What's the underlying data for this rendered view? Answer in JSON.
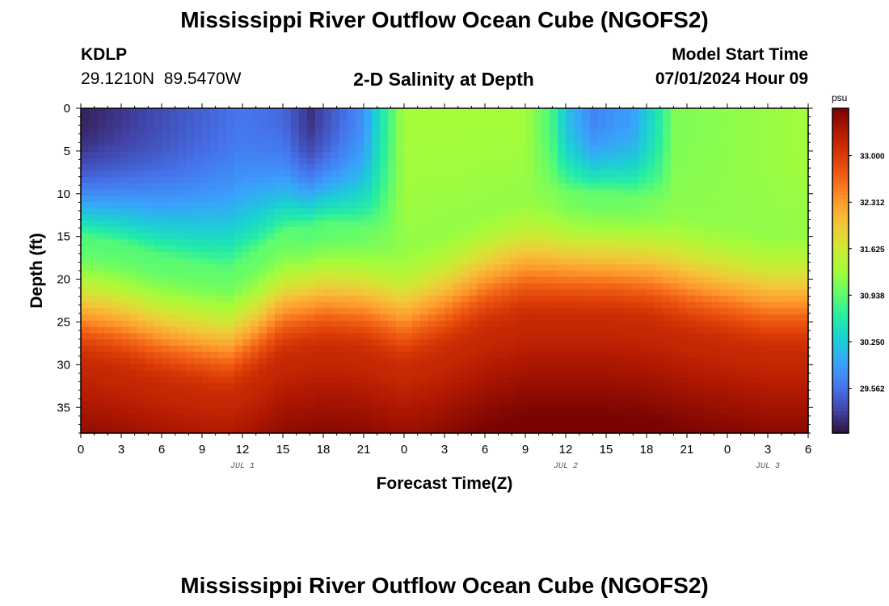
{
  "page": {
    "title": "Mississippi River Outflow Ocean Cube (NGOFS2)",
    "title_bottom": "Mississippi River Outflow Ocean Cube (NGOFS2)",
    "station_id": "KDLP",
    "station_coords": "29.1210N  89.5470W",
    "subtitle": "2-D Salinity at Depth",
    "model_start_label": "Model Start Time",
    "model_start_value": "07/01/2024 Hour 09"
  },
  "chart_data": {
    "type": "heatmap",
    "title": "2-D Salinity at Depth",
    "xlabel": "Forecast Time(Z)",
    "ylabel": "Depth (ft)",
    "x_range_hours": [
      0,
      54
    ],
    "x_tick_step_hours": 3,
    "x_tick_labels": [
      "0",
      "3",
      "6",
      "9",
      "12",
      "15",
      "18",
      "21",
      "0",
      "3",
      "6",
      "9",
      "12",
      "15",
      "18",
      "21",
      "0",
      "3",
      "6"
    ],
    "date_labels": [
      {
        "text": "JUL 1",
        "hour": 12
      },
      {
        "text": "JUL 2",
        "hour": 36
      },
      {
        "text": "JUL 3",
        "hour": 51
      }
    ],
    "y_range_ft": [
      0,
      38
    ],
    "y_ticks": [
      0,
      5,
      10,
      15,
      20,
      25,
      30,
      35
    ],
    "y_labels": [
      "0",
      "5",
      "10",
      "15",
      "20",
      "25",
      "30",
      "35"
    ],
    "colorbar": {
      "unit": "psu",
      "range": [
        28.9,
        33.7
      ],
      "tick_values": [
        33.0,
        32.312,
        31.625,
        30.938,
        30.25,
        29.562
      ],
      "tick_labels": [
        "33.000",
        "32.312",
        "31.625",
        "30.938",
        "30.250",
        "29.562"
      ],
      "colors": [
        "#30123b",
        "#4145ab",
        "#4675ed",
        "#39a2fc",
        "#1bcfd4",
        "#24eca6",
        "#61fc6c",
        "#a4fc3b",
        "#d1e834",
        "#f3c63a",
        "#fe9b2d",
        "#f36315",
        "#d93806",
        "#b11901",
        "#7a0402"
      ]
    },
    "transition_depth_ft": [
      {
        "hour": 0,
        "depth": 21
      },
      {
        "hour": 3,
        "depth": 22
      },
      {
        "hour": 6,
        "depth": 23.5
      },
      {
        "hour": 9,
        "depth": 24.5
      },
      {
        "hour": 11,
        "depth": 25
      },
      {
        "hour": 13,
        "depth": 23
      },
      {
        "hour": 15,
        "depth": 20.5
      },
      {
        "hour": 18,
        "depth": 19.5
      },
      {
        "hour": 21,
        "depth": 20
      },
      {
        "hour": 24,
        "depth": 22
      },
      {
        "hour": 27,
        "depth": 20
      },
      {
        "hour": 30,
        "depth": 17.5
      },
      {
        "hour": 33,
        "depth": 16
      },
      {
        "hour": 36,
        "depth": 16
      },
      {
        "hour": 39,
        "depth": 16
      },
      {
        "hour": 42,
        "depth": 16.5
      },
      {
        "hour": 45,
        "depth": 18
      },
      {
        "hour": 48,
        "depth": 19
      },
      {
        "hour": 51,
        "depth": 20
      },
      {
        "hour": 54,
        "depth": 20
      }
    ],
    "surface_salinity_psu": [
      {
        "hour": 0,
        "value": 29.0
      },
      {
        "hour": 6,
        "value": 29.3
      },
      {
        "hour": 12,
        "value": 29.6
      },
      {
        "hour": 15,
        "value": 29.5
      },
      {
        "hour": 17,
        "value": 29.1
      },
      {
        "hour": 21,
        "value": 29.8
      },
      {
        "hour": 22.5,
        "value": 30.6
      },
      {
        "hour": 24,
        "value": 31.3
      },
      {
        "hour": 33,
        "value": 31.3
      },
      {
        "hour": 35,
        "value": 30.8
      },
      {
        "hour": 36,
        "value": 30.2
      },
      {
        "hour": 38,
        "value": 29.7
      },
      {
        "hour": 41,
        "value": 29.9
      },
      {
        "hour": 43,
        "value": 30.6
      },
      {
        "hour": 44,
        "value": 31.1
      },
      {
        "hour": 54,
        "value": 31.3
      }
    ]
  }
}
